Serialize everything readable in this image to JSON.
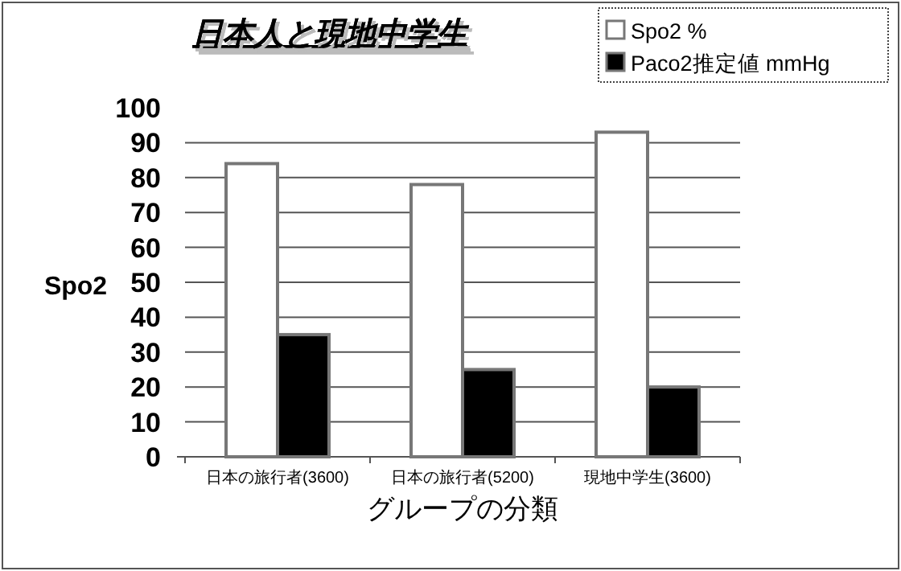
{
  "chart_data": {
    "type": "bar",
    "title": "日本人と現地中学生",
    "xlabel": "グループの分類",
    "ylabel": "Spo2",
    "categories": [
      "日本の旅行者(3600)",
      "日本の旅行者(5200)",
      "現地中学生(3600)"
    ],
    "series": [
      {
        "name": "Spo2 %",
        "color": "#ffffff",
        "values": [
          84,
          78,
          93
        ]
      },
      {
        "name": "Paco2推定値 mmHg",
        "color": "#000000",
        "values": [
          35,
          25,
          20
        ]
      }
    ],
    "ylim": [
      0,
      100
    ],
    "yticks": [
      0,
      10,
      20,
      30,
      40,
      50,
      60,
      70,
      80,
      90,
      100
    ],
    "grid": "y",
    "legend": "top right"
  }
}
